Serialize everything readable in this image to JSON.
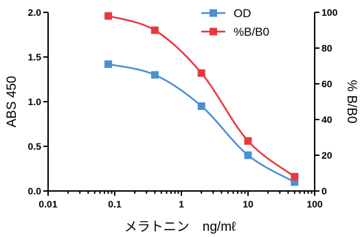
{
  "chart_data": {
    "type": "line",
    "xscale": "log",
    "xlabel": "メラトニン　ng/mℓ",
    "ylabel_left": "ABS 450",
    "ylabel_right": "% B/B0",
    "xlim": [
      0.01,
      100
    ],
    "ylim_left": [
      0,
      2.0
    ],
    "ylim_right": [
      0,
      100
    ],
    "x_ticks": [
      "0.01",
      "0.1",
      "1",
      "10",
      "100"
    ],
    "y_left_ticks": [
      "0.0",
      "0.5",
      "1.0",
      "1.5",
      "2.0"
    ],
    "y_right_ticks": [
      "0",
      "20",
      "40",
      "60",
      "80",
      "100"
    ],
    "legend_position": "top-right",
    "grid": false,
    "series": [
      {
        "name": "OD",
        "axis": "left",
        "color": "#4a8fd4",
        "x": [
          0.08,
          0.4,
          2,
          10,
          50
        ],
        "y": [
          1.42,
          1.3,
          0.95,
          0.4,
          0.1
        ]
      },
      {
        "name": "%B/B0",
        "axis": "right",
        "color": "#e8383f",
        "x": [
          0.08,
          0.4,
          2,
          10,
          50
        ],
        "y": [
          98,
          90,
          66,
          28,
          8
        ]
      }
    ]
  }
}
